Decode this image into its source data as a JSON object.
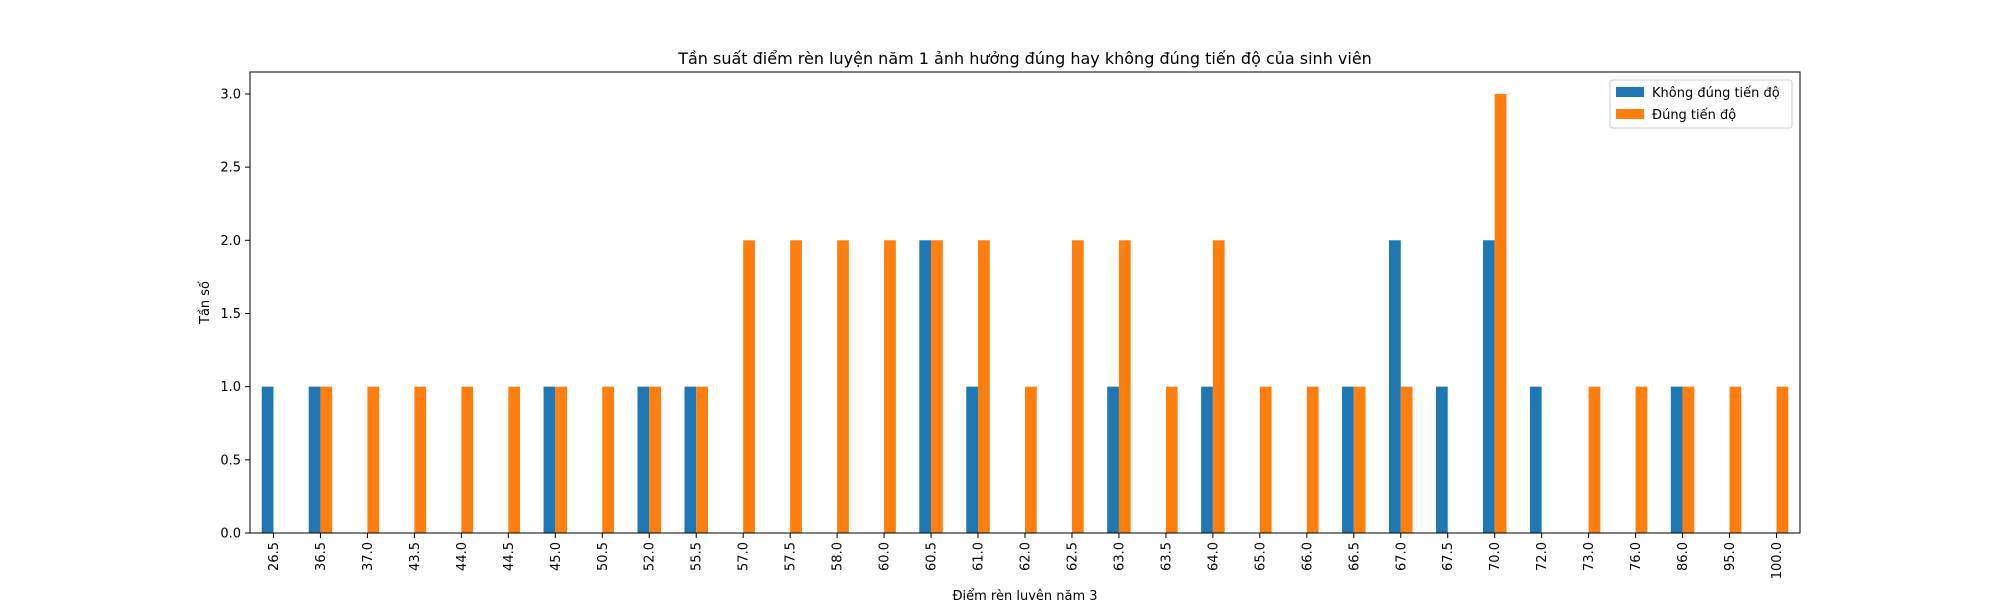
{
  "chart_data": {
    "type": "bar",
    "title": "Tần suất điểm rèn luyện năm 1 ảnh hưởng đúng hay không đúng tiến độ của sinh viên",
    "xlabel": "Điểm rèn luyện năm 3",
    "ylabel": "Tần số",
    "categories": [
      "26.5",
      "36.5",
      "37.0",
      "43.5",
      "44.0",
      "44.5",
      "45.0",
      "50.5",
      "52.0",
      "55.5",
      "57.0",
      "57.5",
      "58.0",
      "60.0",
      "60.5",
      "61.0",
      "62.0",
      "62.5",
      "63.0",
      "63.5",
      "64.0",
      "65.0",
      "66.0",
      "66.5",
      "67.0",
      "67.5",
      "70.0",
      "72.0",
      "73.0",
      "76.0",
      "86.0",
      "95.0",
      "100.0"
    ],
    "series": [
      {
        "name": "Không đúng tiến độ",
        "color": "#1f77b4",
        "values": [
          1,
          1,
          0,
          0,
          0,
          0,
          1,
          0,
          1,
          1,
          0,
          0,
          0,
          0,
          2,
          1,
          0,
          0,
          1,
          0,
          1,
          0,
          0,
          1,
          2,
          1,
          2,
          1,
          0,
          0,
          1,
          0,
          0
        ]
      },
      {
        "name": "Đúng tiến độ",
        "color": "#ff7f0e",
        "values": [
          0,
          1,
          1,
          1,
          1,
          1,
          1,
          1,
          1,
          1,
          2,
          2,
          2,
          2,
          2,
          2,
          1,
          2,
          2,
          1,
          2,
          1,
          1,
          1,
          1,
          0,
          3,
          0,
          1,
          1,
          1,
          1,
          1
        ]
      }
    ],
    "ylim": [
      0,
      3.15
    ],
    "yticks": [
      "0.0",
      "0.5",
      "1.0",
      "1.5",
      "2.0",
      "2.5",
      "3.0"
    ],
    "grid": false,
    "legend_position": "top-right"
  }
}
